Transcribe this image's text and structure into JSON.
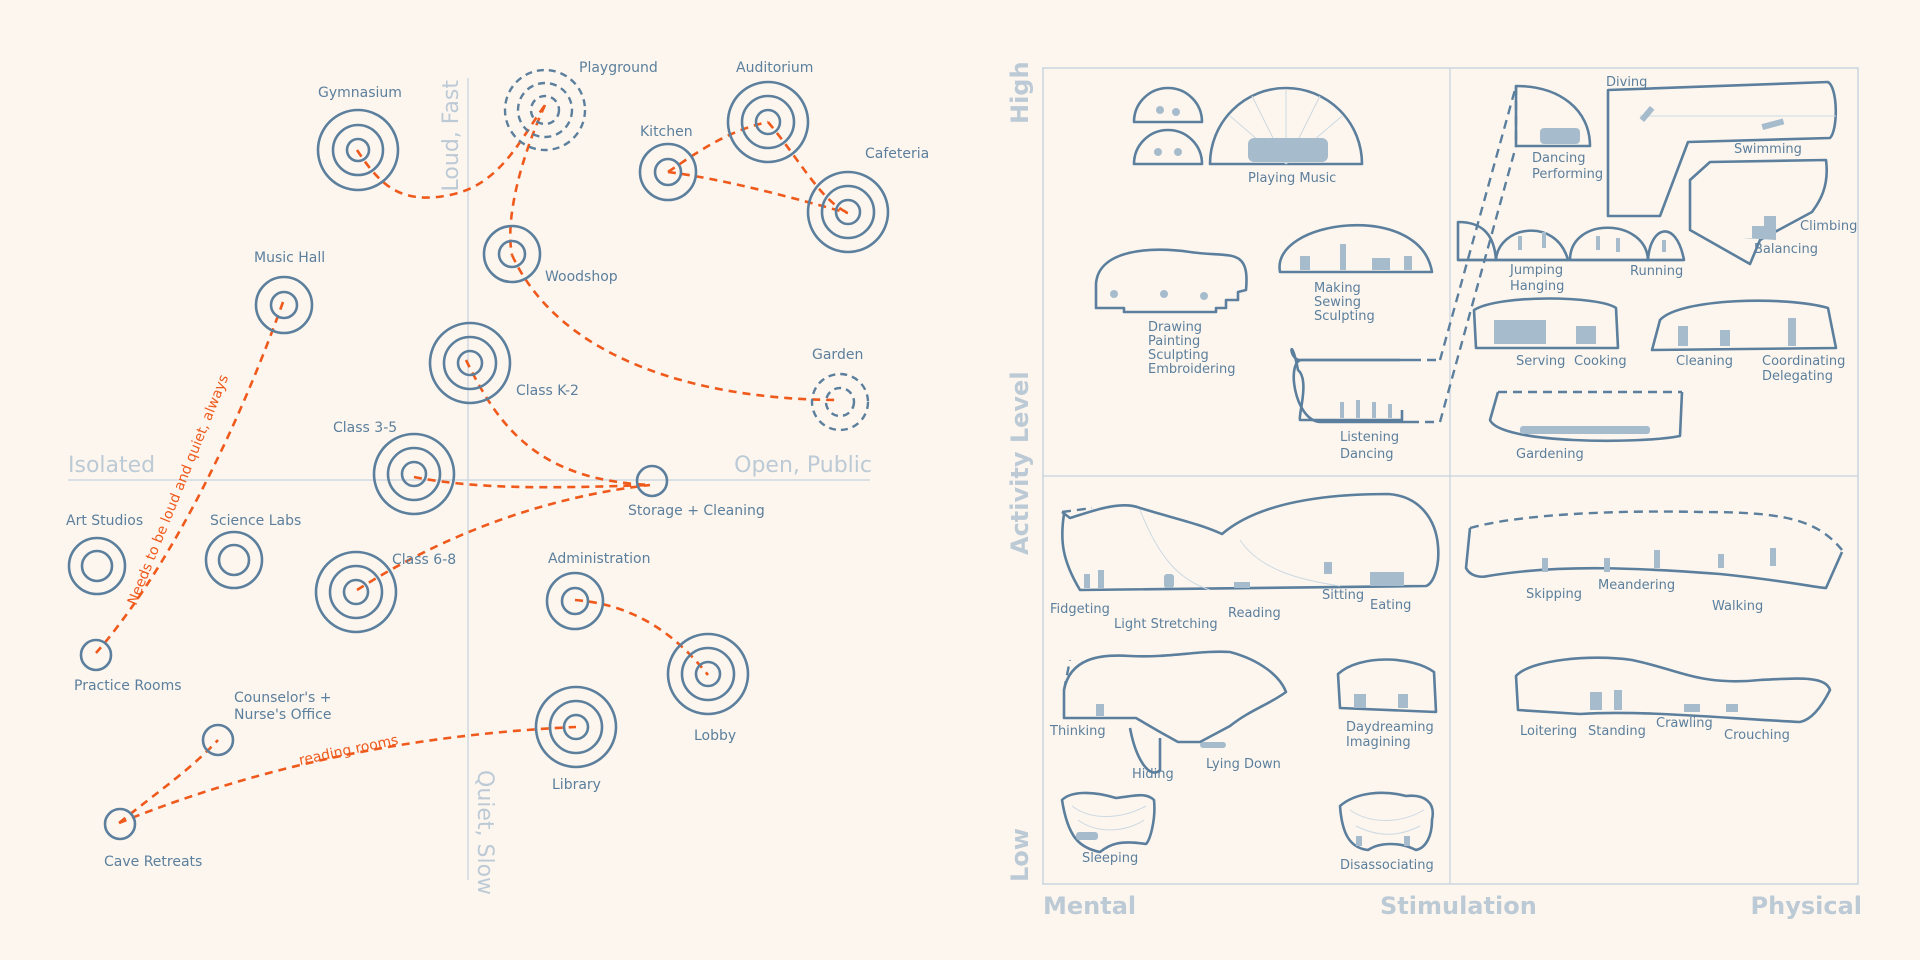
{
  "left_diagram": {
    "axes": {
      "left": "Isolated",
      "right": "Open, Public",
      "top": "Loud, Fast",
      "bottom": "Quiet, Slow"
    },
    "nodes": [
      {
        "id": "gymnasium",
        "label": "Gymnasium"
      },
      {
        "id": "playground",
        "label": "Playground"
      },
      {
        "id": "kitchen",
        "label": "Kitchen"
      },
      {
        "id": "auditorium",
        "label": "Auditorium"
      },
      {
        "id": "cafeteria",
        "label": "Cafeteria"
      },
      {
        "id": "music_hall",
        "label": "Music Hall"
      },
      {
        "id": "woodshop",
        "label": "Woodshop"
      },
      {
        "id": "class_k2",
        "label": "Class K-2"
      },
      {
        "id": "garden",
        "label": "Garden"
      },
      {
        "id": "class_35",
        "label": "Class 3-5"
      },
      {
        "id": "storage",
        "label": "Storage + Cleaning"
      },
      {
        "id": "art_studios",
        "label": "Art Studios"
      },
      {
        "id": "science_labs",
        "label": "Science Labs"
      },
      {
        "id": "class_68",
        "label": "Class 6-8"
      },
      {
        "id": "administration",
        "label": "Administration"
      },
      {
        "id": "practice_rooms",
        "label": "Practice Rooms"
      },
      {
        "id": "lobby",
        "label": "Lobby"
      },
      {
        "id": "counselor_1",
        "label": "Counselor's +"
      },
      {
        "id": "counselor_2",
        "label": "Nurse's Office"
      },
      {
        "id": "library",
        "label": "Library"
      },
      {
        "id": "cave_retreats",
        "label": "Cave Retreats"
      }
    ],
    "annotations": {
      "needs": "Needs to be loud and quiet, always",
      "reading": "reading rooms"
    },
    "colors": {
      "node": "#5b7f9c",
      "link": "#ef5a1c",
      "axis": "#c5d3de",
      "background": "#fdf6ef"
    }
  },
  "right_diagram": {
    "y_axis": {
      "title": "Activity Level",
      "high": "High",
      "low": "Low"
    },
    "x_axis": {
      "title": "Stimulation",
      "left": "Mental",
      "right": "Physical"
    },
    "activities": {
      "playing_music": "Playing Music",
      "drawing": [
        "Drawing",
        "Painting",
        "Sculpting",
        "Embroidering"
      ],
      "making": [
        "Making",
        "Sewing",
        "Sculpting"
      ],
      "listening": [
        "Listening",
        "Dancing"
      ],
      "dancing_performing": [
        "Dancing",
        "Performing"
      ],
      "diving": "Diving",
      "swimming": "Swimming",
      "climbing": "Climbing",
      "balancing": "Balancing",
      "jumping": [
        "Jumping",
        "Hanging"
      ],
      "running": "Running",
      "serving": "Serving",
      "cooking": "Cooking",
      "cleaning": "Cleaning",
      "coordinating": [
        "Coordinating",
        "Delegating"
      ],
      "gardening": "Gardening",
      "fidgeting": "Fidgeting",
      "light_stretching": "Light Stretching",
      "reading": "Reading",
      "sitting": "Sitting",
      "eating": "Eating",
      "skipping": "Skipping",
      "meandering": "Meandering",
      "walking": "Walking",
      "thinking": "Thinking",
      "hiding": "Hiding",
      "lying_down": "Lying Down",
      "daydreaming": [
        "Daydreaming",
        "Imagining"
      ],
      "loitering": "Loitering",
      "standing": "Standing",
      "crawling": "Crawling",
      "crouching": "Crouching",
      "sleeping": "Sleeping",
      "disassociating": "Disassociating"
    }
  }
}
